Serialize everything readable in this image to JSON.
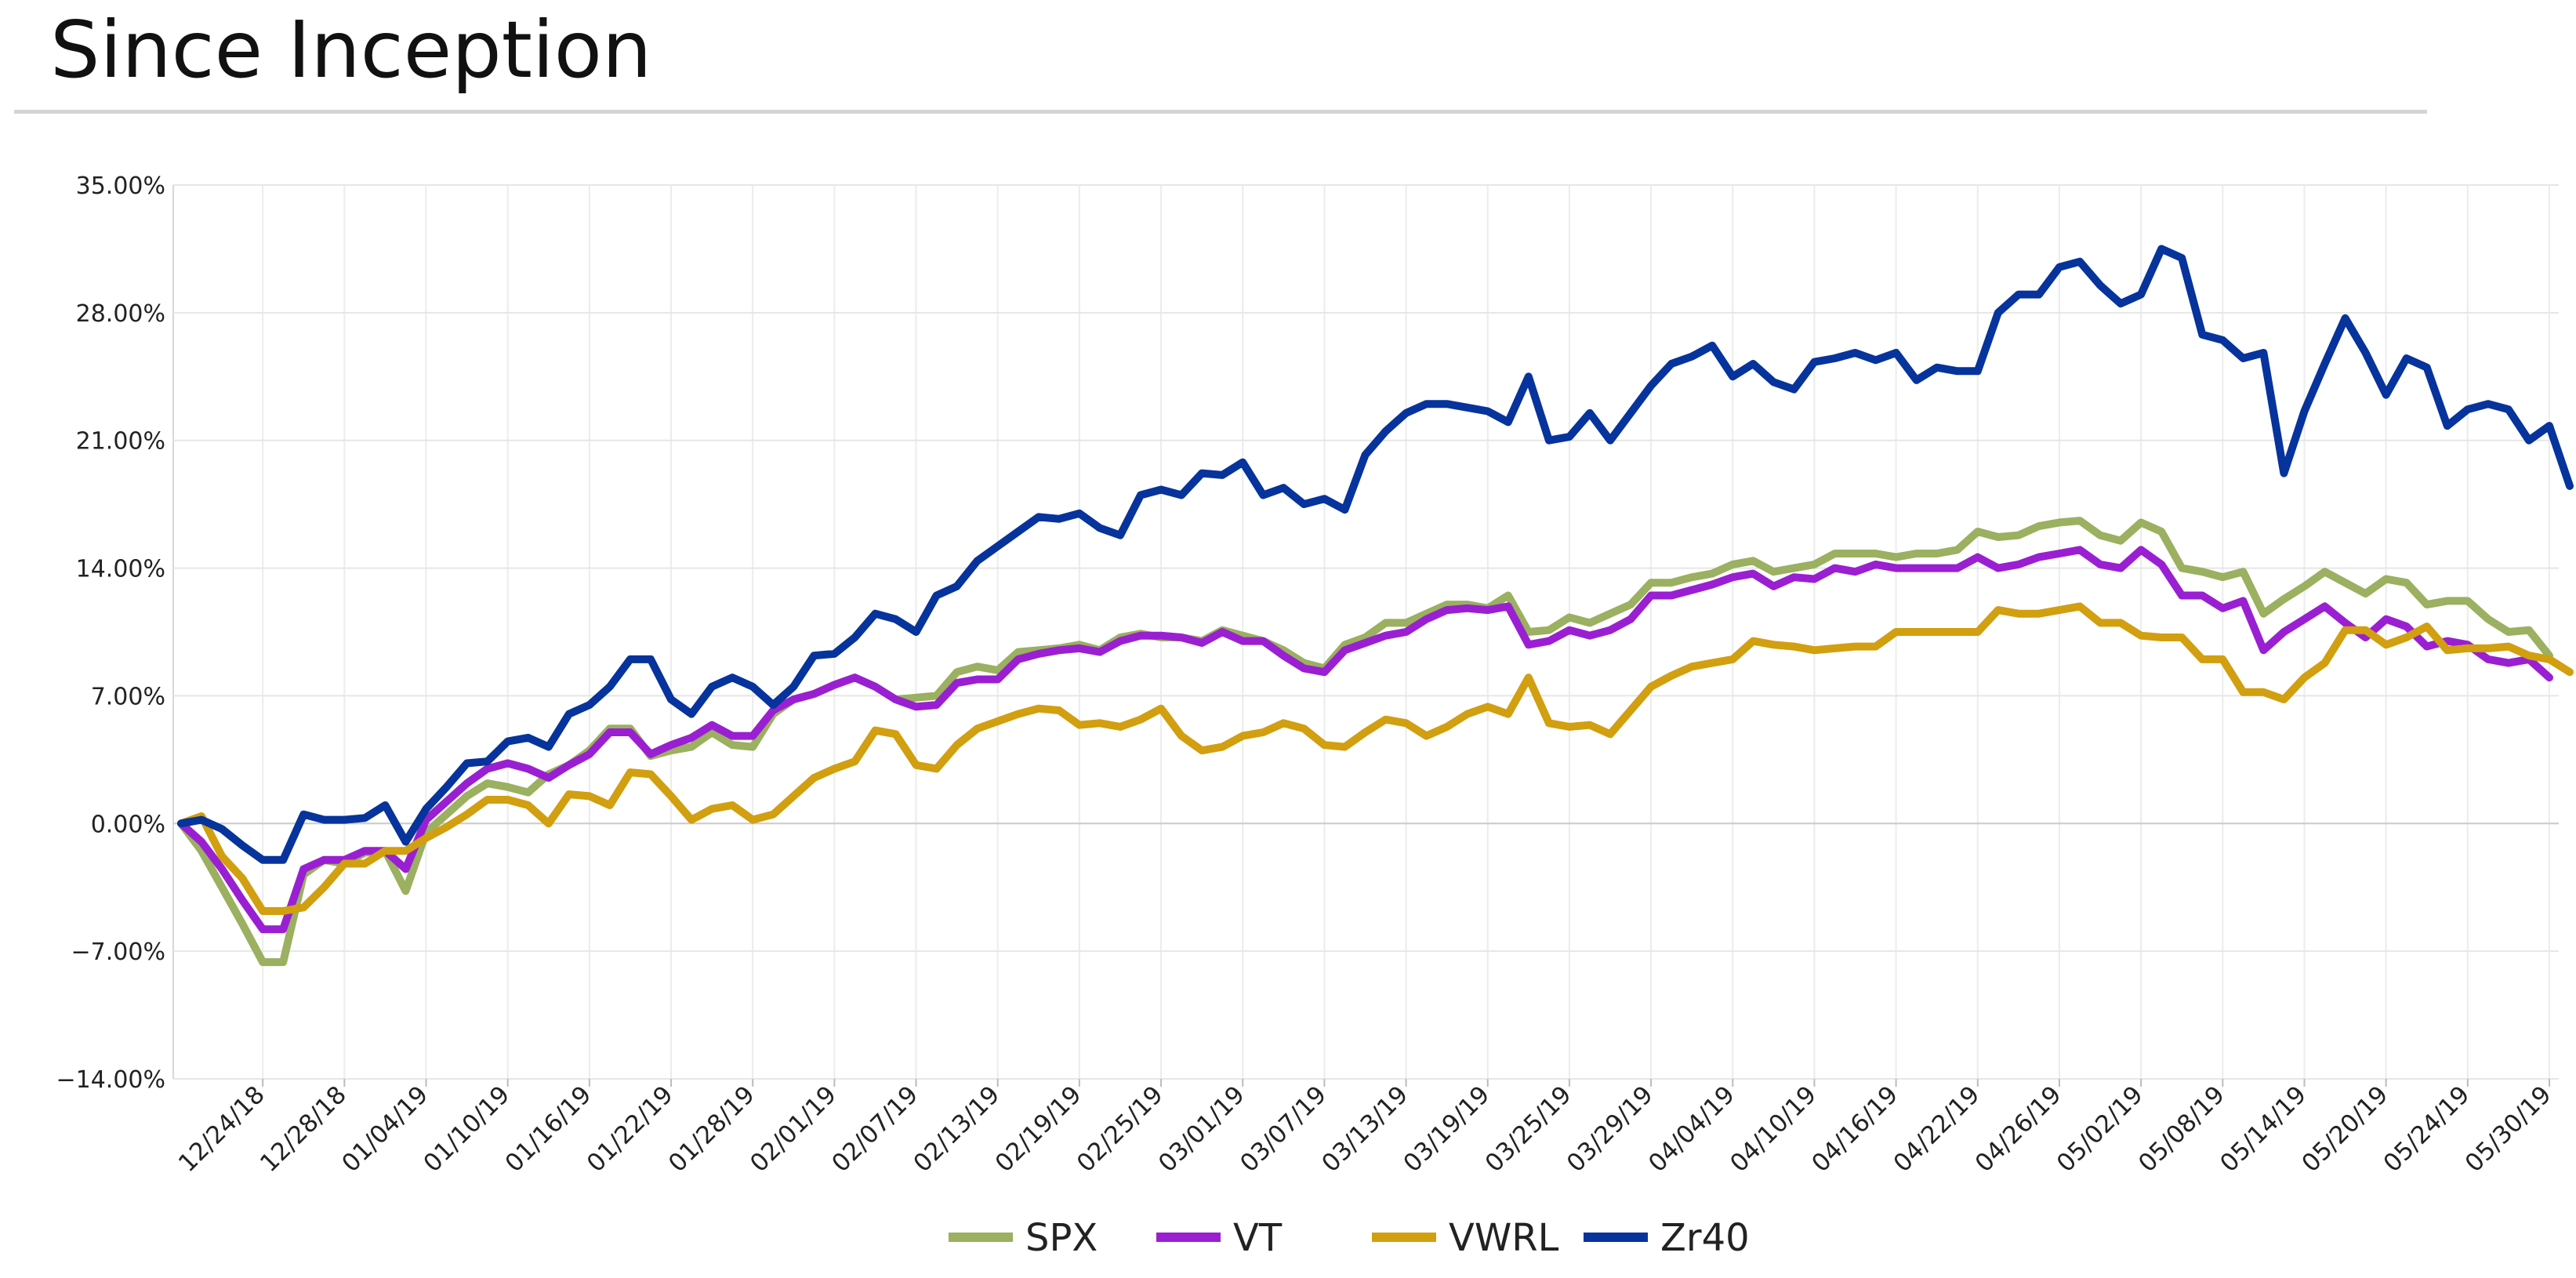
{
  "page": {
    "title": "Since Inception"
  },
  "colors": {
    "SPX": "#9bb060",
    "VT": "#9a1fd2",
    "VWRL": "#d19f0f",
    "Zr40": "#06339c"
  },
  "chart_data": {
    "type": "line",
    "title": "Since Inception",
    "xlabel": "",
    "ylabel": "",
    "ylim": [
      -14,
      35
    ],
    "y_ticks": [
      35,
      28,
      21,
      14,
      7,
      0,
      -7,
      -14
    ],
    "y_tick_labels": [
      "35.00%",
      "28.00%",
      "21.00%",
      "14.00%",
      "7.00%",
      "0.00%",
      "−7.00%",
      "−14.00%"
    ],
    "grid": true,
    "legend": "bottom-center",
    "x_tick_labels": [
      "12/24/18",
      "12/28/18",
      "01/04/19",
      "01/10/19",
      "01/16/19",
      "01/22/19",
      "01/28/19",
      "02/01/19",
      "02/07/19",
      "02/13/19",
      "02/19/19",
      "02/25/19",
      "03/01/19",
      "03/07/19",
      "03/13/19",
      "03/19/19",
      "03/25/19",
      "03/29/19",
      "04/04/19",
      "04/10/19",
      "04/16/19",
      "04/22/19",
      "04/26/19",
      "05/02/19",
      "05/08/19",
      "05/14/19",
      "05/20/19",
      "05/24/19",
      "05/30/19"
    ],
    "x_tick_index": [
      4,
      8,
      12,
      16,
      20,
      24,
      28,
      32,
      36,
      40,
      44,
      48,
      52,
      56,
      60,
      64,
      68,
      72,
      76,
      80,
      84,
      88,
      92,
      96,
      100,
      104,
      108,
      112,
      116
    ],
    "series": [
      {
        "name": "SPX",
        "values": [
          0,
          -1.5,
          -3.5,
          -5.5,
          -7.6,
          -7.6,
          -2.8,
          -2.0,
          -2.2,
          -1.6,
          -1.5,
          -3.7,
          -0.5,
          0.5,
          1.5,
          2.2,
          2.0,
          1.7,
          2.7,
          3.2,
          4.0,
          5.2,
          5.2,
          3.7,
          4.0,
          4.2,
          5.0,
          4.3,
          4.2,
          6.0,
          6.8,
          7.1,
          7.6,
          8.0,
          7.5,
          6.8,
          6.9,
          7.0,
          8.3,
          8.6,
          8.4,
          9.4,
          9.5,
          9.6,
          9.8,
          9.5,
          10.2,
          10.4,
          10.2,
          10.2,
          10.0,
          10.6,
          10.3,
          10.0,
          9.5,
          8.8,
          8.5,
          9.8,
          10.2,
          11.0,
          11.0,
          11.5,
          12.0,
          12.0,
          11.8,
          12.5,
          10.5,
          10.6,
          11.3,
          11.0,
          11.5,
          12.0,
          13.2,
          13.2,
          13.5,
          13.7,
          14.2,
          14.4,
          13.8,
          14.0,
          14.2,
          14.8,
          14.8,
          14.8,
          14.6,
          14.8,
          14.8,
          15.0,
          16.0,
          15.7,
          15.8,
          16.3,
          16.5,
          16.6,
          15.8,
          15.5,
          16.5,
          16.0,
          14.0,
          13.8,
          13.5,
          13.8,
          11.5,
          12.3,
          13.0,
          13.8,
          13.2,
          12.6,
          13.4,
          13.2,
          12.0,
          12.2,
          12.2,
          11.2,
          10.5,
          10.6,
          9.2
        ]
      },
      {
        "name": "VT",
        "values": [
          0,
          -1.0,
          -2.5,
          -4.2,
          -5.8,
          -5.8,
          -2.5,
          -2.0,
          -2.0,
          -1.5,
          -1.5,
          -2.5,
          0.2,
          1.2,
          2.2,
          3.0,
          3.3,
          3.0,
          2.5,
          3.2,
          3.8,
          5.0,
          5.0,
          3.8,
          4.3,
          4.7,
          5.4,
          4.8,
          4.8,
          6.2,
          6.8,
          7.1,
          7.6,
          8.0,
          7.5,
          6.8,
          6.4,
          6.5,
          7.7,
          7.9,
          7.9,
          9.0,
          9.3,
          9.5,
          9.6,
          9.4,
          10.0,
          10.3,
          10.3,
          10.2,
          9.9,
          10.5,
          10.0,
          10.0,
          9.2,
          8.5,
          8.3,
          9.5,
          9.9,
          10.3,
          10.5,
          11.2,
          11.7,
          11.8,
          11.7,
          11.9,
          9.8,
          10.0,
          10.6,
          10.3,
          10.6,
          11.2,
          12.5,
          12.5,
          12.8,
          13.1,
          13.5,
          13.7,
          13.0,
          13.5,
          13.4,
          14.0,
          13.8,
          14.2,
          14.0,
          14.0,
          14.0,
          14.0,
          14.6,
          14.0,
          14.2,
          14.6,
          14.8,
          15.0,
          14.2,
          14.0,
          15.0,
          14.2,
          12.5,
          12.5,
          11.8,
          12.2,
          9.5,
          10.5,
          11.2,
          11.9,
          11.0,
          10.2,
          11.2,
          10.8,
          9.7,
          10.0,
          9.8,
          9.0,
          8.8,
          9.0,
          8.0
        ]
      },
      {
        "name": "VWRL",
        "values": [
          0,
          0.4,
          -1.8,
          -3.0,
          -4.8,
          -4.8,
          -4.6,
          -3.5,
          -2.2,
          -2.2,
          -1.5,
          -1.5,
          -0.8,
          -0.2,
          0.5,
          1.3,
          1.3,
          1.0,
          0.0,
          1.6,
          1.5,
          1.0,
          2.8,
          2.7,
          1.5,
          0.2,
          0.8,
          1.0,
          0.2,
          0.5,
          1.5,
          2.5,
          3.0,
          3.4,
          5.1,
          4.9,
          3.2,
          3.0,
          4.3,
          5.2,
          5.6,
          6.0,
          6.3,
          6.2,
          5.4,
          5.5,
          5.3,
          5.7,
          6.3,
          4.8,
          4.0,
          4.2,
          4.8,
          5.0,
          5.5,
          5.2,
          4.3,
          4.2,
          5.0,
          5.7,
          5.5,
          4.8,
          5.3,
          6.0,
          6.4,
          6.0,
          8.0,
          5.5,
          5.3,
          5.4,
          4.9,
          6.2,
          7.5,
          8.1,
          8.6,
          8.8,
          9.0,
          10.0,
          9.8,
          9.7,
          9.5,
          9.6,
          9.7,
          9.7,
          10.5,
          10.5,
          10.5,
          10.5,
          10.5,
          11.7,
          11.5,
          11.5,
          11.7,
          11.9,
          11.0,
          11.0,
          10.3,
          10.2,
          10.2,
          9.0,
          9.0,
          7.2,
          7.2,
          6.8,
          8.0,
          8.8,
          10.6,
          10.6,
          9.8,
          10.2,
          10.8,
          9.5,
          9.6,
          9.6,
          9.7,
          9.2,
          9.0,
          8.3
        ]
      },
      {
        "name": "Zr40",
        "values": [
          0,
          0.2,
          -0.3,
          -1.2,
          -2.0,
          -2.0,
          0.5,
          0.2,
          0.2,
          0.3,
          1.0,
          -1.0,
          0.8,
          2.0,
          3.3,
          3.4,
          4.5,
          4.7,
          4.2,
          6.0,
          6.5,
          7.5,
          9.0,
          9.0,
          6.8,
          6.0,
          7.5,
          8.0,
          7.5,
          6.5,
          7.5,
          9.2,
          9.3,
          10.2,
          11.5,
          11.2,
          10.5,
          12.5,
          13.0,
          14.4,
          15.2,
          16.0,
          16.8,
          16.7,
          17.0,
          16.2,
          15.8,
          18.0,
          18.3,
          18.0,
          19.2,
          19.1,
          19.8,
          18.0,
          18.4,
          17.5,
          17.8,
          17.2,
          20.2,
          21.5,
          22.5,
          23.0,
          23.0,
          22.8,
          22.6,
          22.0,
          24.5,
          21.0,
          21.2,
          22.5,
          21.0,
          22.5,
          24.0,
          25.2,
          25.6,
          26.2,
          24.5,
          25.2,
          24.2,
          23.8,
          25.3,
          25.5,
          25.8,
          25.4,
          25.8,
          24.3,
          25.0,
          24.8,
          24.8,
          28.0,
          29.0,
          29.0,
          30.5,
          30.8,
          29.5,
          28.5,
          29.0,
          31.5,
          31.0,
          26.8,
          26.5,
          25.5,
          25.8,
          19.2,
          22.6,
          25.2,
          27.7,
          25.8,
          23.5,
          25.5,
          25.0,
          21.8,
          22.7,
          23.0,
          22.7,
          21.0,
          21.8,
          18.5
        ]
      }
    ]
  }
}
